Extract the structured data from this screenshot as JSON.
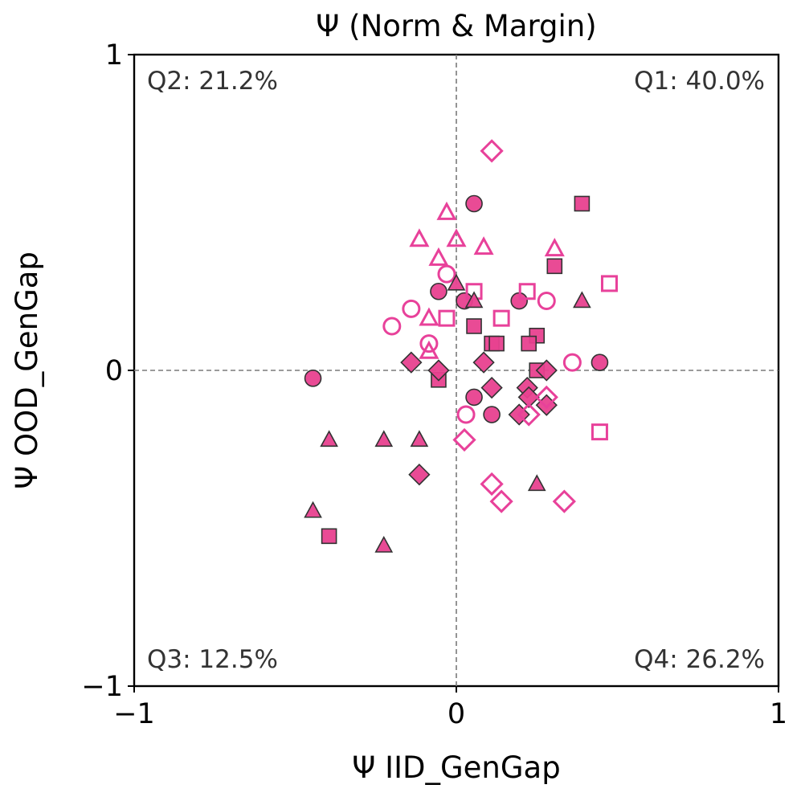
{
  "chart_data": {
    "type": "scatter",
    "title": "Ψ (Norm & Margin)",
    "xlabel": "Ψ IID_GenGap",
    "ylabel": "Ψ OOD_GenGap",
    "xlim": [
      -1,
      1
    ],
    "ylim": [
      -1,
      1
    ],
    "xticks": [
      {
        "value": -1,
        "label": "−1"
      },
      {
        "value": 0,
        "label": "0"
      },
      {
        "value": 1,
        "label": "1"
      }
    ],
    "yticks": [
      {
        "value": -1,
        "label": "−1"
      },
      {
        "value": 0,
        "label": "0"
      },
      {
        "value": 1,
        "label": "1"
      }
    ],
    "reference_lines": {
      "x": 0,
      "y": 0,
      "style": "dashed"
    },
    "quadrant_labels": {
      "q1": "Q1: 40.0%",
      "q2": "Q2: 21.2%",
      "q3": "Q3: 12.5%",
      "q4": "Q4: 26.2%"
    },
    "colors": {
      "fill": "#e8418f",
      "hollow_stroke": "#e8419a",
      "edge": "#333333"
    },
    "series": [
      {
        "name": "circle-filled",
        "marker": "circle",
        "filled": true,
        "points": [
          [
            0.055,
            0.528
          ],
          [
            -0.055,
            0.25
          ],
          [
            0.025,
            0.22
          ],
          [
            0.195,
            0.22
          ],
          [
            -0.445,
            -0.025
          ],
          [
            0.055,
            -0.085
          ],
          [
            0.11,
            -0.14
          ],
          [
            0.445,
            0.025
          ]
        ]
      },
      {
        "name": "circle-hollow",
        "marker": "circle",
        "filled": false,
        "points": [
          [
            -0.03,
            0.305
          ],
          [
            -0.14,
            0.195
          ],
          [
            -0.2,
            0.14
          ],
          [
            -0.085,
            0.085
          ],
          [
            0.28,
            0.22
          ],
          [
            0.36,
            0.025
          ],
          [
            0.03,
            -0.14
          ]
        ]
      },
      {
        "name": "square-filled",
        "marker": "square",
        "filled": true,
        "points": [
          [
            0.39,
            0.528
          ],
          [
            0.305,
            0.33
          ],
          [
            0.055,
            0.14
          ],
          [
            0.25,
            0.11
          ],
          [
            0.225,
            0.085
          ],
          [
            0.11,
            0.085
          ],
          [
            0.125,
            0.085
          ],
          [
            0.25,
            0.0
          ],
          [
            -0.055,
            -0.03
          ],
          [
            -0.395,
            -0.525
          ]
        ]
      },
      {
        "name": "square-hollow",
        "marker": "square",
        "filled": false,
        "points": [
          [
            0.055,
            0.25
          ],
          [
            0.22,
            0.25
          ],
          [
            0.475,
            0.275
          ],
          [
            -0.03,
            0.165
          ],
          [
            0.14,
            0.165
          ],
          [
            0.445,
            -0.195
          ]
        ]
      },
      {
        "name": "triangle-filled",
        "marker": "triangle",
        "filled": true,
        "points": [
          [
            0.0,
            0.275
          ],
          [
            0.055,
            0.22
          ],
          [
            0.39,
            0.22
          ],
          [
            -0.395,
            -0.22
          ],
          [
            -0.225,
            -0.22
          ],
          [
            -0.115,
            -0.22
          ],
          [
            -0.445,
            -0.445
          ],
          [
            0.25,
            -0.36
          ],
          [
            -0.225,
            -0.555
          ]
        ]
      },
      {
        "name": "triangle-hollow",
        "marker": "triangle",
        "filled": false,
        "points": [
          [
            -0.03,
            0.5
          ],
          [
            -0.115,
            0.415
          ],
          [
            0.0,
            0.415
          ],
          [
            0.085,
            0.39
          ],
          [
            0.305,
            0.385
          ],
          [
            -0.055,
            0.355
          ],
          [
            -0.085,
            0.165
          ],
          [
            -0.085,
            0.06
          ]
        ]
      },
      {
        "name": "diamond-filled",
        "marker": "diamond",
        "filled": true,
        "points": [
          [
            -0.14,
            0.025
          ],
          [
            -0.055,
            0.0
          ],
          [
            0.085,
            0.025
          ],
          [
            0.28,
            0.0
          ],
          [
            0.11,
            -0.055
          ],
          [
            0.22,
            -0.055
          ],
          [
            0.225,
            -0.085
          ],
          [
            0.195,
            -0.14
          ],
          [
            0.28,
            -0.11
          ],
          [
            -0.115,
            -0.33
          ]
        ]
      },
      {
        "name": "diamond-hollow",
        "marker": "diamond",
        "filled": false,
        "points": [
          [
            0.11,
            0.695
          ],
          [
            0.28,
            -0.085
          ],
          [
            0.225,
            -0.14
          ],
          [
            0.025,
            -0.22
          ],
          [
            0.11,
            -0.36
          ],
          [
            0.14,
            -0.415
          ],
          [
            0.335,
            -0.415
          ]
        ]
      }
    ]
  }
}
